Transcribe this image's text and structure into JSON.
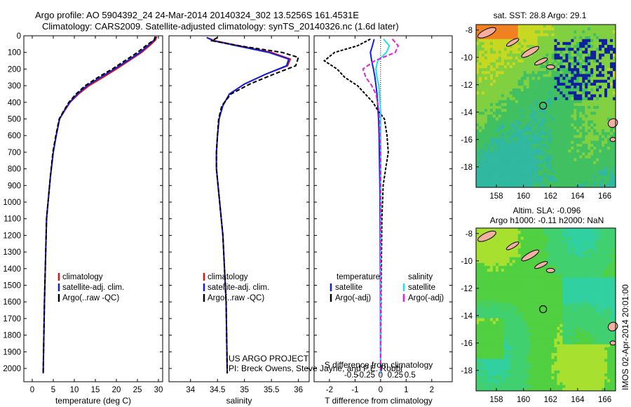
{
  "header": {
    "title_line1": "Argo profile: AO 5904392_24 24-Mar-2014 20140324_302 13.5256S 161.4531E",
    "title_line2": "Climatology: CARS2009. Satellite-adjusted climatology: synTS_20140326.nc (1.6d later)"
  },
  "credits": {
    "line1": "US ARGO PROJECT",
    "line2": "PI: Breck Owens, Steve Jayne, and P.E. Robbi"
  },
  "side_label": "IMOS 02-Apr-2014 20:01:00",
  "colors": {
    "climatology": "#e01010",
    "satellite": "#1020e0",
    "argo": "#000000",
    "sal_satellite": "#20e0f0",
    "sal_argo": "#e020e0"
  },
  "chart_data": [
    {
      "type": "line",
      "id": "temperature",
      "xlabel": "temperature (deg C)",
      "ylabel": "",
      "xlim": [
        -2,
        31
      ],
      "ylim": [
        2080,
        0
      ],
      "xticks": [
        "0",
        "5",
        "10",
        "15",
        "20",
        "25",
        "30"
      ],
      "xtick_values": [
        0,
        5,
        10,
        15,
        20,
        25,
        30
      ],
      "yticks": [
        "0",
        "100",
        "200",
        "300",
        "400",
        "500",
        "600",
        "700",
        "800",
        "900",
        "1000",
        "1100",
        "1200",
        "1300",
        "1400",
        "1500",
        "1600",
        "1700",
        "1800",
        "1900",
        "2000"
      ],
      "ytick_values": [
        0,
        100,
        200,
        300,
        400,
        500,
        600,
        700,
        800,
        900,
        1000,
        1100,
        1200,
        1300,
        1400,
        1500,
        1600,
        1700,
        1800,
        1900,
        2000
      ],
      "legend": [
        "climatology",
        "satellite-adj. clim.",
        "Argo(..raw -QC)"
      ],
      "series": [
        {
          "name": "climatology",
          "x": [
            29.6,
            29.3,
            28.3,
            26.0,
            23.0,
            20.0,
            16.8,
            13.5,
            11.0,
            9.0,
            7.7,
            6.5,
            5.7,
            5.0,
            4.3,
            3.4,
            2.9,
            2.6
          ],
          "y": [
            5,
            25,
            50,
            100,
            150,
            200,
            250,
            300,
            350,
            400,
            450,
            500,
            600,
            700,
            850,
            1100,
            1600,
            2030
          ]
        },
        {
          "name": "satellite-adj. clim.",
          "x": [
            29.4,
            29.0,
            27.9,
            25.6,
            22.6,
            19.5,
            16.2,
            13.0,
            10.7,
            8.9,
            7.6,
            6.5,
            5.7,
            5.0,
            4.3,
            3.4,
            2.9,
            2.6
          ],
          "y": [
            5,
            25,
            50,
            100,
            150,
            200,
            250,
            300,
            350,
            400,
            450,
            500,
            600,
            700,
            850,
            1100,
            1600,
            2030
          ]
        },
        {
          "name": "Argo(..raw -QC)",
          "x": [
            29.2,
            29.0,
            27.5,
            25.0,
            22.0,
            19.0,
            15.6,
            12.6,
            10.4,
            8.7,
            7.5,
            6.4,
            5.6,
            4.9,
            4.3,
            3.4,
            2.9,
            2.6
          ],
          "y": [
            5,
            25,
            50,
            100,
            150,
            200,
            250,
            300,
            350,
            400,
            450,
            500,
            600,
            700,
            850,
            1100,
            1600,
            2030
          ]
        }
      ]
    },
    {
      "type": "line",
      "id": "salinity",
      "xlabel": "salinity",
      "ylabel": "",
      "xlim": [
        33.6,
        36.2
      ],
      "ylim": [
        2080,
        0
      ],
      "xticks": [
        "34",
        "34.5",
        "35",
        "35.5",
        "36"
      ],
      "xtick_values": [
        34,
        34.5,
        35,
        35.5,
        36
      ],
      "legend": [
        "climatology",
        "satellite-adj. clim.",
        "Argo(..raw -QC)"
      ],
      "series": [
        {
          "name": "climatology",
          "x": [
            34.3,
            34.45,
            34.9,
            35.5,
            35.85,
            35.8,
            35.4,
            35.0,
            34.72,
            34.6,
            34.53,
            34.5,
            34.48,
            34.48,
            34.51,
            34.6,
            34.66,
            34.68
          ],
          "y": [
            10,
            30,
            60,
            100,
            140,
            180,
            230,
            290,
            350,
            420,
            500,
            600,
            700,
            800,
            900,
            1200,
            1600,
            2030
          ]
        },
        {
          "name": "satellite-adj. clim.",
          "x": [
            34.3,
            34.42,
            34.85,
            35.45,
            35.82,
            35.78,
            35.4,
            35.0,
            34.72,
            34.6,
            34.53,
            34.5,
            34.48,
            34.48,
            34.51,
            34.6,
            34.66,
            34.68
          ],
          "y": [
            10,
            30,
            60,
            100,
            140,
            180,
            230,
            290,
            350,
            420,
            500,
            600,
            700,
            800,
            900,
            1200,
            1600,
            2030
          ]
        },
        {
          "name": "Argo(..raw -QC)",
          "x": [
            34.5,
            34.4,
            34.9,
            35.7,
            36.0,
            35.95,
            35.55,
            35.1,
            34.75,
            34.58,
            34.52,
            34.5,
            34.48,
            34.48,
            34.51,
            34.6,
            34.66,
            34.68
          ],
          "y": [
            10,
            30,
            60,
            100,
            130,
            180,
            230,
            290,
            350,
            420,
            500,
            600,
            700,
            800,
            900,
            1200,
            1600,
            2030
          ]
        }
      ]
    },
    {
      "type": "line",
      "id": "difference",
      "xlabel": "T difference from climatology",
      "xlabel_top": "S difference from climatology",
      "xlim": [
        -2.6,
        2.8
      ],
      "ylim": [
        2080,
        0
      ],
      "xticks": [
        "-2",
        "-1",
        "0",
        "1",
        "2"
      ],
      "xtick_values": [
        -2,
        -1,
        0,
        1,
        2
      ],
      "sticks": [
        "-0.5",
        "-0.25",
        "0",
        "0.25",
        "0.5"
      ],
      "stick_values": [
        -0.5,
        -0.25,
        0,
        0.25,
        0.5
      ],
      "legend_temperature_header": "temperature",
      "legend_salinity_header": "salinity",
      "legend_temperature": [
        "satellite",
        "Argo(-adj)"
      ],
      "legend_salinity": [
        "satellite",
        "Argo(-adj)"
      ],
      "series": [
        {
          "name": "satellite",
          "x": [
            -0.25,
            -0.32,
            -0.4,
            -0.35,
            -0.28,
            -0.22,
            -0.18,
            -0.14,
            -0.12,
            -0.1,
            -0.08,
            -0.06,
            -0.05,
            -0.04,
            -0.03,
            -0.02,
            -0.01,
            0
          ],
          "y": [
            20,
            60,
            100,
            150,
            200,
            250,
            300,
            350,
            400,
            450,
            500,
            600,
            700,
            800,
            900,
            1100,
            1500,
            2030
          ]
        },
        {
          "name": "Argo(-adj)",
          "x": [
            -0.4,
            -0.9,
            -1.8,
            -2.2,
            -1.7,
            -1.4,
            -0.9,
            -0.6,
            -0.3,
            -0.1,
            0.15,
            0.25,
            0.3,
            0.2,
            0.1,
            0.05,
            0.02,
            0
          ],
          "y": [
            20,
            60,
            100,
            150,
            200,
            250,
            300,
            350,
            400,
            450,
            500,
            600,
            700,
            800,
            900,
            1100,
            1500,
            2030
          ]
        },
        {
          "name": "salinity satellite",
          "x": [
            0.05,
            0.15,
            0.1,
            -0.05,
            -0.08,
            -0.06,
            -0.03,
            -0.02,
            -0.01,
            0,
            0,
            0,
            0,
            0,
            0,
            0,
            0,
            0
          ],
          "y": [
            20,
            60,
            100,
            150,
            200,
            250,
            300,
            350,
            400,
            450,
            500,
            600,
            700,
            800,
            900,
            1100,
            1500,
            2030
          ]
        },
        {
          "name": "salinity Argo(-adj)",
          "x": [
            0.2,
            0.3,
            0.25,
            -0.1,
            -0.3,
            -0.25,
            -0.15,
            -0.08,
            -0.05,
            -0.03,
            -0.02,
            -0.01,
            0,
            0,
            0,
            0,
            0,
            0
          ],
          "y": [
            20,
            60,
            100,
            150,
            200,
            250,
            300,
            350,
            400,
            450,
            500,
            600,
            700,
            800,
            900,
            1100,
            1500,
            2030
          ]
        }
      ]
    },
    {
      "type": "heatmap",
      "id": "sst_map",
      "title": "sat. SST: 28.8  Argo: 29.1",
      "xlim": [
        156.5,
        166.8
      ],
      "ylim": [
        -19.5,
        -7.6
      ],
      "xticks": [
        "158",
        "160",
        "162",
        "164",
        "166"
      ],
      "xtick_values": [
        158,
        160,
        162,
        164,
        166
      ],
      "yticks": [
        "-8",
        "-10",
        "-12",
        "-14",
        "-16",
        "-18"
      ],
      "ytick_values": [
        -8,
        -10,
        -12,
        -14,
        -16,
        -18
      ],
      "argo_position": [
        161.45,
        -13.53
      ]
    },
    {
      "type": "heatmap",
      "id": "sla_map",
      "title": "Altim. SLA: -0.096",
      "subtitle": "Argo h1000: -0.11  h2000: NaN",
      "xlim": [
        156.5,
        166.8
      ],
      "ylim": [
        -19.5,
        -7.6
      ],
      "xticks": [
        "158",
        "160",
        "162",
        "164",
        "166"
      ],
      "xtick_values": [
        158,
        160,
        162,
        164,
        166
      ],
      "yticks": [
        "-8",
        "-10",
        "-12",
        "-14",
        "-16",
        "-18"
      ],
      "ytick_values": [
        -8,
        -10,
        -12,
        -14,
        -16,
        -18
      ],
      "argo_position": [
        161.45,
        -13.53
      ]
    }
  ]
}
